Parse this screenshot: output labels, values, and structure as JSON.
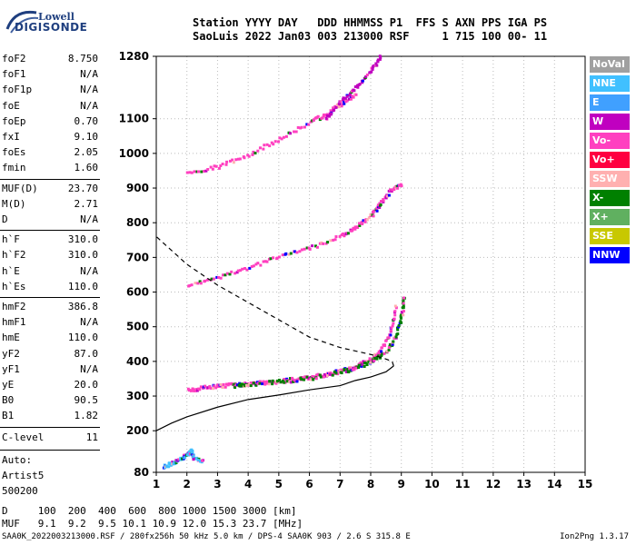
{
  "logo": {
    "line1": "Lowell",
    "line2": "DIGISONDE"
  },
  "header": {
    "line1": "Station YYYY DAY   DDD HHMMSS P1  FFS S AXN PPS IGA PS",
    "line2": "SaoLuis 2022 Jan03 003 213000 RSF     1 715 100 00- 11"
  },
  "params": {
    "group1": [
      {
        "label": "foF2",
        "value": "8.750"
      },
      {
        "label": "foF1",
        "value": "N/A"
      },
      {
        "label": "foF1p",
        "value": "N/A"
      },
      {
        "label": "foE",
        "value": "N/A"
      },
      {
        "label": "foEp",
        "value": "0.70"
      },
      {
        "label": "fxI",
        "value": "9.10"
      },
      {
        "label": "foEs",
        "value": "2.05"
      },
      {
        "label": "fmin",
        "value": "1.60"
      }
    ],
    "group2": [
      {
        "label": "MUF(D)",
        "value": "23.70"
      },
      {
        "label": "M(D)",
        "value": "2.71"
      },
      {
        "label": "D",
        "value": "N/A"
      }
    ],
    "group3": [
      {
        "label": "h`F",
        "value": "310.0"
      },
      {
        "label": "h`F2",
        "value": "310.0"
      },
      {
        "label": "h`E",
        "value": "N/A"
      },
      {
        "label": "h`Es",
        "value": "110.0"
      }
    ],
    "group4": [
      {
        "label": "hmF2",
        "value": "386.8"
      },
      {
        "label": "hmF1",
        "value": "N/A"
      },
      {
        "label": "hmE",
        "value": "110.0"
      },
      {
        "label": "yF2",
        "value": "87.0"
      },
      {
        "label": "yF1",
        "value": "N/A"
      },
      {
        "label": "yE",
        "value": "20.0"
      },
      {
        "label": "B0",
        "value": "90.5"
      },
      {
        "label": "B1",
        "value": "1.82"
      }
    ],
    "clevel": {
      "label": "C-level",
      "value": "11"
    },
    "auto": [
      "Auto:",
      "Artist5",
      "500200"
    ]
  },
  "legend": [
    {
      "label": "NoVal",
      "color": "#a0a0a0"
    },
    {
      "label": "NNE",
      "color": "#40c0ff"
    },
    {
      "label": "E",
      "color": "#40a0ff"
    },
    {
      "label": "W",
      "color": "#c000c0"
    },
    {
      "label": "Vo-",
      "color": "#ff40c0"
    },
    {
      "label": "Vo+",
      "color": "#ff0040"
    },
    {
      "label": "SSW",
      "color": "#ffb0b0"
    },
    {
      "label": "X-",
      "color": "#008000"
    },
    {
      "label": "X+",
      "color": "#60b060"
    },
    {
      "label": "SSE",
      "color": "#c8c800"
    },
    {
      "label": "NNW",
      "color": "#0000ff"
    }
  ],
  "footer": {
    "line1": "D     100  200  400  600  800 1000 1500 3000 [km]",
    "line2": "MUF   9.1  9.2  9.5 10.1 10.9 12.0 15.3 23.7 [MHz]",
    "line3": "SAA0K_2022003213000.RSF / 280fx256h 50 kHz 5.0 km / DPS-4 SAA0K 903 / 2.6 S 315.8 E",
    "version": "Ion2Png 1.3.17"
  },
  "chart_data": {
    "type": "scatter",
    "xlim": [
      1,
      15
    ],
    "ylim": [
      80,
      1280
    ],
    "x_ticks": [
      1,
      2,
      3,
      4,
      5,
      6,
      7,
      8,
      9,
      10,
      11,
      12,
      13,
      14,
      15
    ],
    "y_ticks": [
      80,
      200,
      300,
      400,
      500,
      600,
      700,
      800,
      900,
      1000,
      1100,
      1280
    ],
    "grid": true,
    "legend_placement": "right",
    "traces": [
      {
        "name": "F2 O-trace",
        "color": "#ff40c0",
        "x": [
          2.0,
          2.5,
          3.0,
          3.5,
          4.0,
          4.5,
          5.0,
          5.5,
          6.0,
          6.5,
          7.0,
          7.5,
          8.0,
          8.3,
          8.6,
          8.8
        ],
        "y": [
          315,
          322,
          326,
          330,
          333,
          337,
          341,
          346,
          352,
          360,
          370,
          385,
          405,
          430,
          480,
          560
        ]
      },
      {
        "name": "F2 X-trace",
        "color": "#008000",
        "x": [
          3.5,
          4.0,
          5.0,
          6.0,
          7.0,
          7.5,
          8.0,
          8.5,
          8.8,
          9.0,
          9.05
        ],
        "y": [
          328,
          332,
          340,
          350,
          368,
          380,
          398,
          428,
          470,
          540,
          590
        ]
      },
      {
        "name": "2nd hop",
        "color": "#ff40c0",
        "x": [
          2.0,
          3.0,
          4.0,
          5.0,
          6.0,
          7.0,
          7.5,
          8.0,
          8.3,
          8.6,
          9.0
        ],
        "y": [
          615,
          640,
          670,
          700,
          725,
          760,
          785,
          820,
          855,
          890,
          910
        ]
      },
      {
        "name": "3rd hop",
        "color": "#ff40c0",
        "x": [
          2.0,
          3.0,
          4.0,
          5.0,
          6.0,
          6.5,
          7.0,
          7.5
        ],
        "y": [
          940,
          960,
          995,
          1040,
          1090,
          1110,
          1140,
          1170
        ]
      },
      {
        "name": "4th hop",
        "color": "#c000c0",
        "x": [
          6.5,
          7.0,
          7.5,
          8.0,
          8.3
        ],
        "y": [
          1100,
          1150,
          1190,
          1240,
          1280
        ]
      },
      {
        "name": "Es",
        "color": "#40c0ff",
        "x": [
          1.2,
          1.5,
          1.8,
          2.0,
          2.1,
          2.2,
          2.5
        ],
        "y": [
          95,
          105,
          120,
          130,
          140,
          120,
          110
        ]
      }
    ],
    "profile": {
      "x": [
        1.0,
        1.5,
        2.0,
        3.0,
        4.0,
        5.0,
        6.0,
        7.0,
        7.5,
        8.0,
        8.5,
        8.75,
        8.7,
        8.4,
        8.0,
        7.0,
        6.0,
        5.0,
        4.0,
        3.0,
        2.0,
        1.0
      ],
      "y": [
        200,
        222,
        240,
        268,
        290,
        303,
        318,
        330,
        345,
        355,
        370,
        386.8,
        400,
        410,
        420,
        440,
        470,
        520,
        570,
        620,
        680,
        760
      ]
    },
    "profile_solid_until_index": 11
  }
}
